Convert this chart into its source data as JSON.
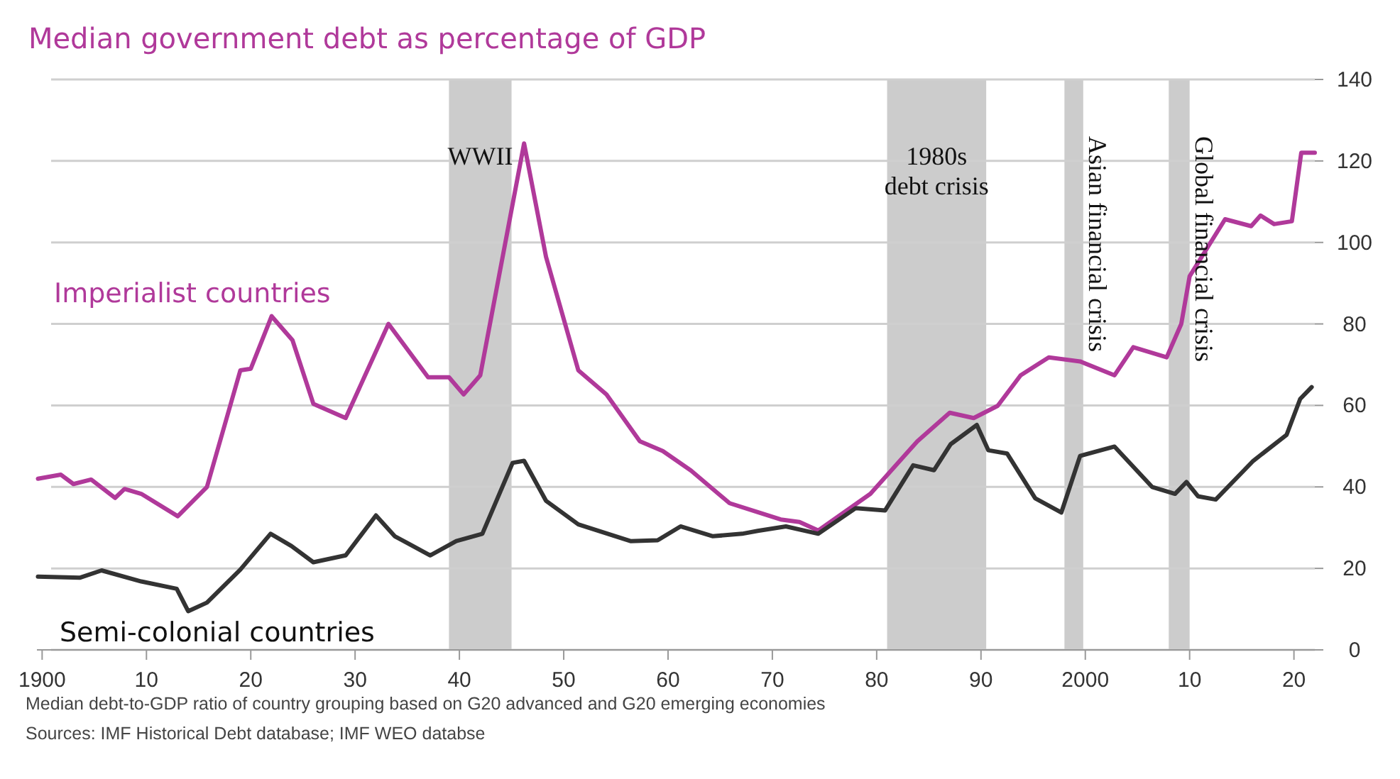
{
  "chart_data": {
    "type": "line",
    "title": "Median government debt as percentage of GDP",
    "xlim": [
      1899.5,
      2022
    ],
    "xticks": [
      {
        "value": 1900,
        "label": "1900"
      },
      {
        "value": 1910,
        "label": "10"
      },
      {
        "value": 1920,
        "label": "20"
      },
      {
        "value": 1930,
        "label": "30"
      },
      {
        "value": 1940,
        "label": "40"
      },
      {
        "value": 1950,
        "label": "50"
      },
      {
        "value": 1960,
        "label": "60"
      },
      {
        "value": 1970,
        "label": "70"
      },
      {
        "value": 1980,
        "label": "80"
      },
      {
        "value": 1990,
        "label": "90"
      },
      {
        "value": 2000,
        "label": "2000"
      },
      {
        "value": 2010,
        "label": "10"
      },
      {
        "value": 2020,
        "label": "20"
      }
    ],
    "ylim": [
      0,
      140
    ],
    "yticks": [
      0,
      20,
      40,
      60,
      80,
      100,
      120,
      140
    ],
    "grid": "y",
    "series": [
      {
        "name": "Imperialist countries",
        "color": "#b0399a",
        "x": [
          1899.6,
          1901.8,
          1903,
          1904.7,
          1907,
          1907.9,
          1909.5,
          1913,
          1915.8,
          1919,
          1920,
          1922,
          1924,
          1926,
          1929.1,
          1933.2,
          1937,
          1939,
          1940.4,
          1942,
          1946.2,
          1948.3,
          1951.4,
          1954.1,
          1957.3,
          1959.5,
          1962.2,
          1965.9,
          1968.6,
          1970.8,
          1972.6,
          1974.4,
          1979.4,
          1983.9,
          1987,
          1989.3,
          1991.6,
          1993.8,
          1996.5,
          1999.5,
          2002.8,
          2004.6,
          2007.8,
          2009.2,
          2010,
          2013.4,
          2015.9,
          2016.8,
          2018.1,
          2019.8,
          2020.7,
          2022
        ],
        "values": [
          42,
          43,
          40.7,
          41.8,
          37.3,
          39.5,
          38.3,
          32.8,
          40,
          68.6,
          69,
          81.9,
          76,
          60.4,
          56.9,
          80,
          66.9,
          66.9,
          62.7,
          67.4,
          124.3,
          96.5,
          68.6,
          62.7,
          51.2,
          48.8,
          44,
          36,
          33.8,
          32,
          31.4,
          29.3,
          38.3,
          51.2,
          58.2,
          56.9,
          59.9,
          67.4,
          71.8,
          70.8,
          67.4,
          74.3,
          71.8,
          80,
          91.7,
          105.7,
          104,
          106.6,
          104.5,
          105.2,
          122,
          122
        ]
      },
      {
        "name": "Semi-colonial countries",
        "color": "#333333",
        "x": [
          1899.6,
          1903.6,
          1905.7,
          1909.5,
          1912.9,
          1914,
          1915.8,
          1919,
          1921.9,
          1923.9,
          1926,
          1929.1,
          1932,
          1933.8,
          1937.2,
          1939.7,
          1942.2,
          1945.1,
          1946.2,
          1948.3,
          1951.4,
          1956.4,
          1959,
          1961.2,
          1964.3,
          1967.1,
          1968.6,
          1971.3,
          1974.4,
          1978,
          1980.8,
          1983.5,
          1985.5,
          1987.1,
          1989.6,
          1990.7,
          1992.5,
          1995.2,
          1997.7,
          1999.5,
          2002.8,
          2006.4,
          2008.6,
          2009.7,
          2010.8,
          2012.5,
          2016.1,
          2019.3,
          2020.6,
          2021.7
        ],
        "values": [
          18,
          17.7,
          19.5,
          16.8,
          15,
          9.5,
          11.6,
          19.7,
          28.5,
          25.5,
          21.5,
          23.2,
          33,
          27.9,
          23.2,
          26.7,
          28.5,
          45.9,
          46.4,
          36.6,
          30.8,
          26.7,
          26.9,
          30.3,
          27.9,
          28.5,
          29.2,
          30.3,
          28.5,
          34.8,
          34.2,
          45.3,
          44.1,
          50.5,
          55.2,
          49,
          48.2,
          37.2,
          33.7,
          47.6,
          49.9,
          40,
          38.3,
          41.2,
          37.7,
          36.9,
          46.4,
          52.8,
          61.6,
          64.5
        ]
      }
    ],
    "bands": [
      {
        "axis": "x",
        "from": 1939,
        "to": 1945,
        "label": "WWII",
        "color": "#cccccc"
      },
      {
        "axis": "x",
        "from": 1981,
        "to": 1990.5,
        "label": "1980s debt crisis",
        "color": "#cccccc"
      },
      {
        "axis": "x",
        "from": 1998,
        "to": 1999.8,
        "label": "Asian financial crisis",
        "color": "#cccccc"
      },
      {
        "axis": "x",
        "from": 2008,
        "to": 2010,
        "label": "Global financial crisis",
        "color": "#cccccc"
      }
    ],
    "annotations": [
      "Median debt-to-GDP ratio of country grouping based on G20 advanced and G20 emerging economies",
      "Sources: IMF Historical Debt database; IMF WEO databse"
    ]
  }
}
